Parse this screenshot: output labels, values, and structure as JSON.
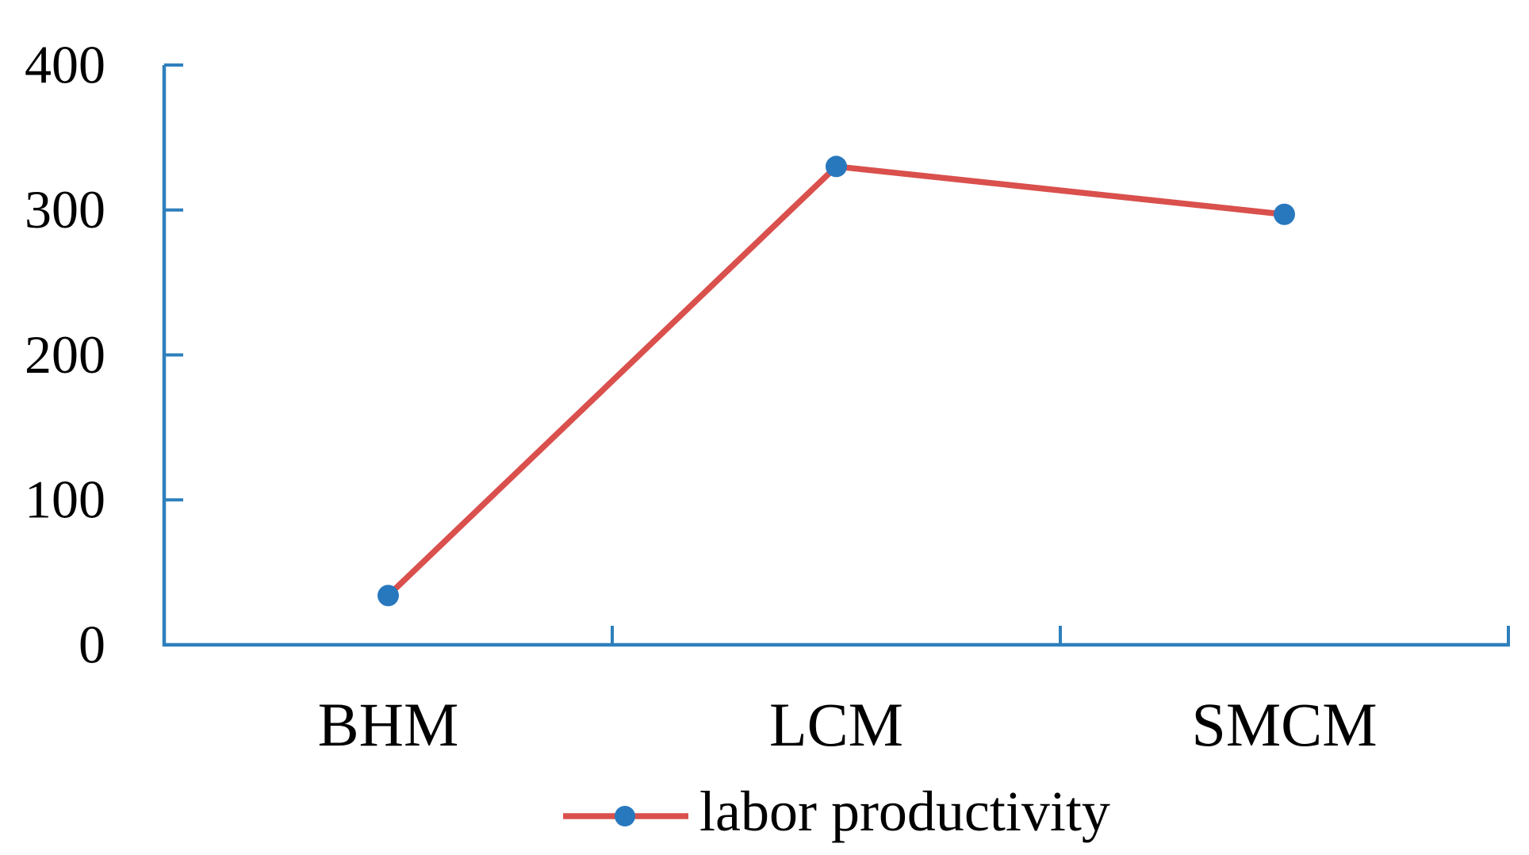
{
  "chart_data": {
    "type": "line",
    "title": "",
    "categories": [
      "BHM",
      "LCM",
      "SMCM"
    ],
    "series": [
      {
        "name": "labor productivity",
        "values": [
          34,
          330,
          297
        ]
      }
    ],
    "xlabel": "",
    "ylabel": "",
    "ylim": [
      0,
      400
    ],
    "y_ticks": [
      0,
      100,
      200,
      300,
      400
    ],
    "grid": false,
    "legend_position": "bottom",
    "colors": {
      "line": "#d9504d",
      "marker": "#2878be",
      "axis": "#2e80bd",
      "text": "#000000"
    }
  }
}
